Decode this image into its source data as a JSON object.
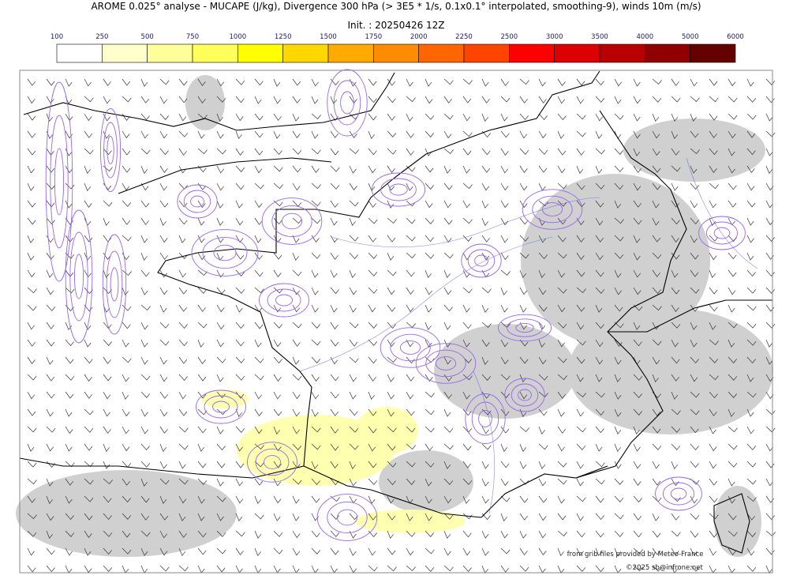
{
  "header": {
    "title": "AROME 0.025° analyse - MUCAPE (J/kg), Divergence 300 hPa (> 3E5 * 1/s, 0.1x0.1° interpolated, smoothing-9), winds 10m (m/s)",
    "subtitle": "Init. : 20250426 12Z"
  },
  "colorbar": {
    "levels": [
      100,
      250,
      500,
      750,
      1000,
      1250,
      1500,
      1750,
      2000,
      2250,
      2500,
      3000,
      3500,
      4000,
      5000,
      6000
    ],
    "colors": [
      "#ffffff",
      "#ffffcc",
      "#ffff99",
      "#ffff5c",
      "#ffff00",
      "#ffd700",
      "#ffaa00",
      "#ff8c00",
      "#ff6600",
      "#ff4400",
      "#ff0000",
      "#dd0000",
      "#b80000",
      "#900000",
      "#640000"
    ]
  },
  "credits": [
    "from grib files provided by Meteo-France",
    "©2025 sb@infrone.net"
  ]
}
